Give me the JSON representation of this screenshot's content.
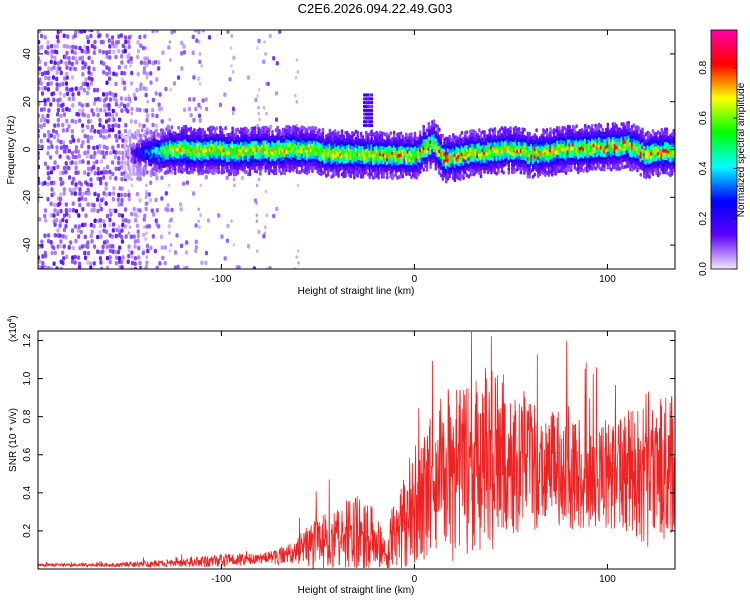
{
  "chart_data": [
    {
      "type": "heatmap",
      "title": "C2E6.2026.094.22.49.G03",
      "xlabel": "Height of straight line (km)",
      "ylabel": "Frequency (Hz)",
      "xlim": [
        -195,
        135
      ],
      "ylim": [
        -50,
        50
      ],
      "x_ticks": [
        -100,
        0,
        100
      ],
      "x_tick_labels": [
        "-100",
        "0",
        "100"
      ],
      "y_ticks": [
        -40,
        -20,
        0,
        20,
        40
      ],
      "y_tick_labels": [
        "-40",
        "-20",
        "0",
        "20",
        "40"
      ],
      "colorbar": {
        "label": "Normalized spectral amplitude",
        "range": [
          0,
          0.95
        ],
        "ticks": [
          0.0,
          0.2,
          0.4,
          0.6,
          0.8
        ],
        "tick_labels": [
          "0.0",
          "0.2",
          "0.4",
          "0.6",
          "0.8"
        ],
        "colors": [
          "#f2e6fb",
          "#5a00ff",
          "#0000ff",
          "#00ffff",
          "#00ff00",
          "#ffff00",
          "#ff0000",
          "#ff00aa"
        ]
      },
      "ridge": {
        "start_km": -150,
        "peak_amplitude": 0.9,
        "points": [
          [
            -150,
            -2
          ],
          [
            -120,
            0
          ],
          [
            -90,
            -1
          ],
          [
            -60,
            0
          ],
          [
            -40,
            -2
          ],
          [
            -20,
            -2
          ],
          [
            0,
            -3
          ],
          [
            5,
            0
          ],
          [
            10,
            3
          ],
          [
            15,
            -4
          ],
          [
            30,
            -2
          ],
          [
            50,
            0
          ],
          [
            60,
            -2
          ],
          [
            80,
            0
          ],
          [
            100,
            1
          ],
          [
            110,
            2
          ],
          [
            120,
            -2
          ],
          [
            135,
            -1
          ]
        ],
        "burst": {
          "x_km": -24,
          "freq_hz": [
            10,
            24
          ]
        }
      }
    },
    {
      "type": "line",
      "title": "",
      "xlabel": "Height of straight line (km)",
      "ylabel": "SNR (10 * v/v)",
      "y_multiplier": "(x10",
      "y_multiplier_exp": "4",
      "y_multiplier_close": ")",
      "xlim": [
        -195,
        135
      ],
      "ylim": [
        0,
        1.25
      ],
      "x_ticks": [
        -100,
        0,
        100
      ],
      "x_tick_labels": [
        "-100",
        "0",
        "100"
      ],
      "y_ticks": [
        0.2,
        0.4,
        0.6,
        0.8,
        1.0,
        1.2
      ],
      "y_tick_labels": [
        "0.2",
        "0.4",
        "0.6",
        "0.8",
        "1.0",
        "1.2"
      ],
      "color": "#ee2222",
      "envelope": {
        "x": [
          -195,
          -160,
          -140,
          -120,
          -100,
          -80,
          -70,
          -60,
          -50,
          -40,
          -30,
          -20,
          -15,
          -10,
          0,
          10,
          20,
          30,
          40,
          50,
          60,
          70,
          80,
          90,
          100,
          110,
          120,
          130,
          135
        ],
        "base": [
          0.02,
          0.02,
          0.025,
          0.03,
          0.04,
          0.05,
          0.06,
          0.09,
          0.12,
          0.15,
          0.18,
          0.12,
          0.06,
          0.18,
          0.3,
          0.42,
          0.48,
          0.5,
          0.52,
          0.52,
          0.5,
          0.5,
          0.48,
          0.46,
          0.46,
          0.46,
          0.48,
          0.5,
          0.52
        ],
        "amplitude": [
          0.01,
          0.015,
          0.025,
          0.03,
          0.05,
          0.04,
          0.06,
          0.1,
          0.2,
          0.22,
          0.3,
          0.25,
          0.1,
          0.3,
          0.45,
          0.55,
          0.7,
          0.65,
          0.7,
          0.55,
          0.5,
          0.45,
          0.45,
          0.4,
          0.4,
          0.45,
          0.6,
          0.55,
          0.55
        ]
      }
    }
  ]
}
